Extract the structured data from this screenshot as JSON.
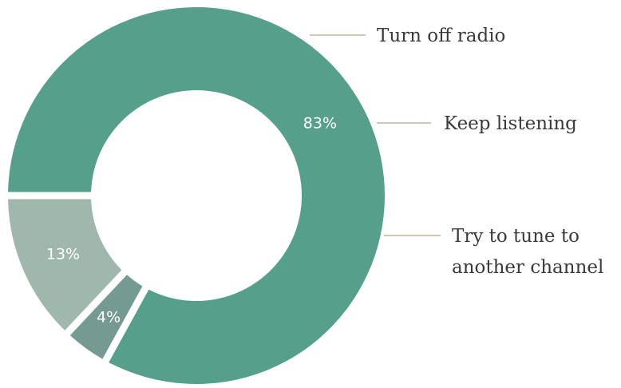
{
  "chart_data": {
    "type": "pie",
    "title": "",
    "slices": [
      {
        "label_lines": [
          "Try to tune to",
          "another channel"
        ],
        "value": 83,
        "value_label": "83%",
        "color": "#56a08b",
        "value_label_color": "#ffffff"
      },
      {
        "label_lines": [
          "Turn off radio"
        ],
        "value": 4,
        "value_label": "4%",
        "color": "#759a91",
        "value_label_color": "#ffffff"
      },
      {
        "label_lines": [
          "Keep listening"
        ],
        "value": 13,
        "value_label": "13%",
        "color": "#a0b7ad",
        "value_label_color": "#ffffff"
      }
    ],
    "leader_line_color": "#d8c4b3"
  }
}
